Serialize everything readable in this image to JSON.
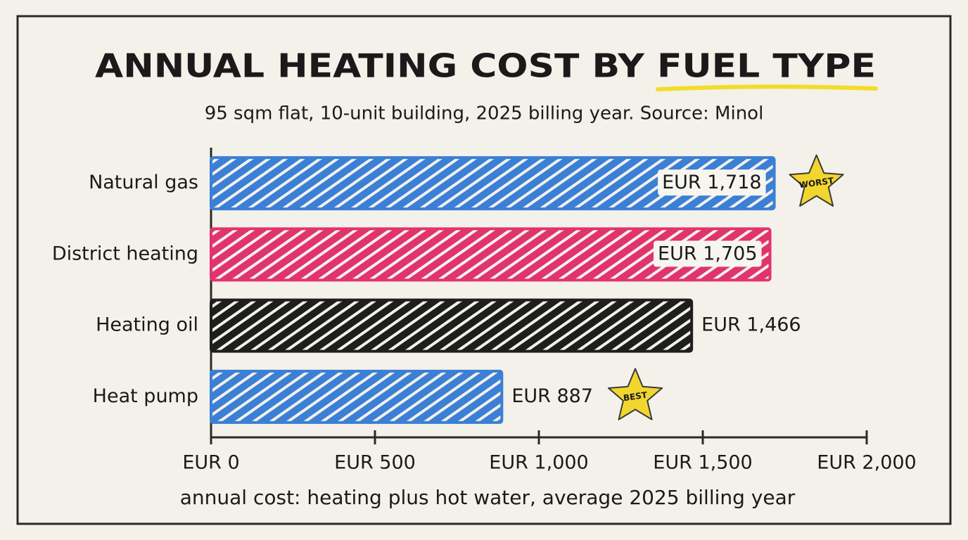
{
  "chart_data": {
    "type": "bar",
    "orientation": "horizontal",
    "title": "ANNUAL HEATING COST BY FUEL TYPE",
    "subtitle": "95 sqm flat, 10-unit building, 2025 billing year. Source: Minol",
    "x_label": "annual cost: heating plus hot water, average 2025 billing year",
    "categories": [
      "Natural gas",
      "District heating",
      "Heating oil",
      "Heat pump"
    ],
    "values": [
      1718,
      1705,
      1466,
      887
    ],
    "value_labels": [
      "EUR 1,718",
      "EUR 1,705",
      "EUR 1,466",
      "EUR 887"
    ],
    "colors": [
      "#3b7fd6",
      "#e0336f",
      "#1e1e1e",
      "#3b7fd6"
    ],
    "xlim": [
      0,
      2000
    ],
    "xticks": [
      {
        "value": 0,
        "label": "EUR 0"
      },
      {
        "value": 500,
        "label": "EUR 500"
      },
      {
        "value": 1000,
        "label": "EUR 1,000"
      },
      {
        "value": 1500,
        "label": "EUR 1,500"
      },
      {
        "value": 2000,
        "label": "EUR 2,000"
      }
    ],
    "annotations": [
      {
        "text": "WORST",
        "category": "Natural gas"
      },
      {
        "text": "BEST",
        "category": "Heat pump"
      }
    ]
  }
}
